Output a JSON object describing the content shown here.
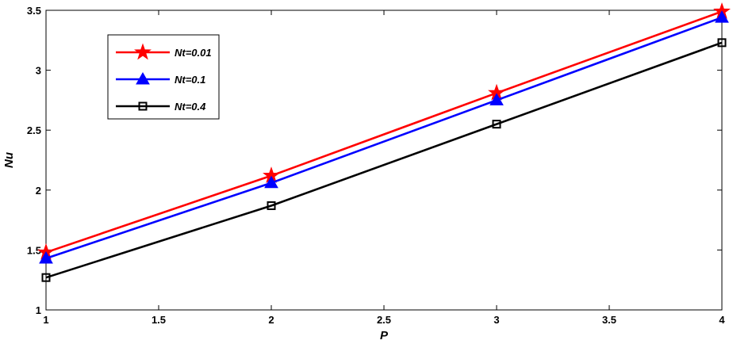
{
  "chart_data": {
    "type": "line",
    "xlabel": "P",
    "ylabel": "Nu",
    "xlim": [
      1,
      4
    ],
    "ylim": [
      1,
      3.5
    ],
    "x_ticks": [
      "1",
      "1.5",
      "2",
      "2.5",
      "3",
      "3.5",
      "4"
    ],
    "y_ticks": [
      "1",
      "1.5",
      "2",
      "2.5",
      "3",
      "3.5"
    ],
    "x": [
      1,
      2,
      3,
      4
    ],
    "grid": false,
    "legend_position": "top-left",
    "series": [
      {
        "name": "Nt=0.01",
        "color": "#ff0000",
        "marker": "star",
        "values": [
          1.48,
          2.12,
          2.81,
          3.49
        ]
      },
      {
        "name": "Nt=0.1",
        "color": "#0000ff",
        "marker": "triangle",
        "values": [
          1.43,
          2.06,
          2.75,
          3.44
        ]
      },
      {
        "name": "Nt=0.4",
        "color": "#000000",
        "marker": "square",
        "values": [
          1.27,
          1.87,
          2.55,
          3.23
        ]
      }
    ]
  }
}
